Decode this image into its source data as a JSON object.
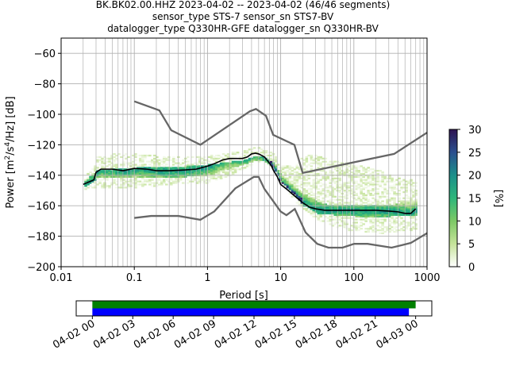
{
  "chart_data": {
    "type": "heatmap",
    "title_lines": [
      "BK.BK02.00.HHZ   2023-04-02 -- 2023-04-02  (46/46 segments)",
      "sensor_type STS-7 sensor_sn STS7-BV",
      "datalogger_type Q330HR-GFE datalogger_sn Q330HR-BV"
    ],
    "xlabel": "Period [s]",
    "ylabel_parts": [
      "Power [m",
      "2",
      "/s",
      "4",
      "/Hz] [dB]"
    ],
    "x_scale": "log",
    "xlim": [
      0.01,
      1000
    ],
    "ylim": [
      -200,
      -50
    ],
    "x_ticks": [
      0.01,
      0.1,
      1,
      10,
      100,
      1000
    ],
    "x_tick_labels": [
      "0.01",
      "0.1",
      "1",
      "10",
      "100",
      "1000"
    ],
    "y_ticks": [
      -200,
      -180,
      -160,
      -140,
      -120,
      -100,
      -80,
      -60
    ],
    "y_tick_labels": [
      "−200",
      "−180",
      "−160",
      "−140",
      "−120",
      "−100",
      "−80",
      "−60"
    ],
    "grid": true,
    "colorbar": {
      "label": "[%]",
      "range": [
        0,
        30
      ],
      "ticks": [
        0,
        5,
        10,
        15,
        20,
        25,
        30
      ],
      "tick_labels": [
        "0",
        "5",
        "10",
        "15",
        "20",
        "25",
        "30"
      ],
      "colors": [
        "#ffffff",
        "#c5e39a",
        "#7cc865",
        "#2db67a",
        "#1b8f8a",
        "#2b4f8e",
        "#2e1352"
      ]
    },
    "model_colors": {
      "noise_models": "#666666",
      "mode": "#000000"
    },
    "high_noise_model": {
      "period": [
        0.1,
        0.22,
        0.32,
        0.8,
        3.8,
        4.6,
        6.3,
        7.9,
        15.4,
        20,
        354.8,
        1000
      ],
      "power": [
        -91.5,
        -97.4,
        -110.5,
        -120,
        -98,
        -96.5,
        -101,
        -113.5,
        -120,
        -138.5,
        -126,
        -112
      ]
    },
    "low_noise_model": {
      "period": [
        0.1,
        0.17,
        0.4,
        0.8,
        1.24,
        2.4,
        4.3,
        5,
        6,
        10,
        12,
        15.6,
        21.9,
        31.6,
        45,
        70,
        101,
        154,
        328,
        600,
        1000
      ],
      "power": [
        -168,
        -166.7,
        -166.7,
        -169.2,
        -163.7,
        -148.6,
        -141.1,
        -141.1,
        -149,
        -163.8,
        -166.2,
        -162.1,
        -177.5,
        -185,
        -187.5,
        -187.5,
        -185,
        -185,
        -187.5,
        -184.4,
        -178
      ]
    },
    "mode_curve": {
      "period": [
        0.02,
        0.025,
        0.028,
        0.03,
        0.035,
        0.05,
        0.07,
        0.1,
        0.15,
        0.2,
        0.3,
        0.5,
        0.7,
        1,
        1.3,
        1.6,
        2,
        2.5,
        3,
        3.5,
        4,
        4.5,
        5,
        5.5,
        6,
        6.5,
        7,
        7.5,
        8,
        9,
        10,
        12,
        15,
        20,
        25,
        30,
        40,
        50,
        70,
        100,
        150,
        200,
        300,
        400,
        500,
        600,
        700
      ],
      "power": [
        -146,
        -144,
        -143,
        -138,
        -136,
        -136,
        -137,
        -135.5,
        -136,
        -137,
        -137,
        -136.5,
        -136,
        -134,
        -132,
        -130,
        -129,
        -129,
        -129,
        -128,
        -126,
        -125.5,
        -126,
        -127,
        -128,
        -130,
        -132,
        -134,
        -137,
        -141,
        -146,
        -149,
        -153,
        -158,
        -161,
        -162,
        -163,
        -163,
        -163,
        -163,
        -163,
        -163,
        -163.5,
        -164,
        -165,
        -165,
        -162
      ]
    },
    "histogram_envelope": {
      "period": [
        0.02,
        0.03,
        0.05,
        0.1,
        0.2,
        0.5,
        1,
        2,
        3,
        4,
        5,
        6,
        7,
        8,
        10,
        15,
        20,
        30,
        50,
        100,
        200,
        300,
        500,
        700
      ],
      "upper": [
        -143,
        -128,
        -126,
        -126,
        -127,
        -128,
        -127,
        -125,
        -124,
        -122,
        -121,
        -122,
        -124,
        -127,
        -134,
        -134,
        -126,
        -127,
        -130,
        -133,
        -136,
        -140,
        -143,
        -143
      ],
      "lower": [
        -150,
        -148,
        -148,
        -148,
        -147,
        -145,
        -145,
        -140,
        -136,
        -133,
        -131,
        -132,
        -134,
        -138,
        -146,
        -157,
        -163,
        -169,
        -174,
        -177,
        -178,
        -178,
        -176,
        -176
      ],
      "dense_upper": [
        -144,
        -137,
        -136,
        -135,
        -135,
        -134,
        -133,
        -131,
        -130,
        -128,
        -127,
        -128,
        -130,
        -133,
        -140,
        -147,
        -152,
        -157,
        -160,
        -160,
        -160,
        -160,
        -157,
        -157
      ],
      "dense_lower": [
        -148,
        -142,
        -141,
        -141,
        -141,
        -141,
        -140,
        -136,
        -133,
        -131,
        -130,
        -131,
        -133,
        -137,
        -145,
        -153,
        -160,
        -165,
        -166,
        -167,
        -167,
        -167,
        -166,
        -166
      ]
    },
    "timeline": {
      "start": "2023-04-02 00:00",
      "end": "2023-04-03 00:00",
      "tick_labels": [
        "04-02 00",
        "04-02 03",
        "04-02 06",
        "04-02 09",
        "04-02 12",
        "04-02 15",
        "04-02 18",
        "04-02 21",
        "04-03 00"
      ],
      "tick_hours": [
        0,
        3,
        6,
        9,
        12,
        15,
        18,
        21,
        24
      ],
      "axis_hours": [
        -1.2,
        25.2
      ],
      "bars": [
        {
          "color": "#008000",
          "start_hour": 0,
          "end_hour": 24.0
        },
        {
          "color": "#0000ff",
          "start_hour": 0,
          "end_hour": 23.5
        }
      ]
    }
  }
}
